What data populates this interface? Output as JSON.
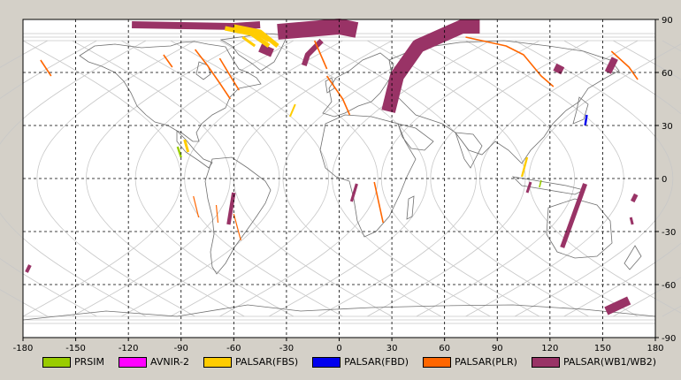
{
  "chart_data": {
    "type": "map",
    "projection": "equirectangular",
    "xlim": [
      -180,
      180
    ],
    "ylim": [
      -90,
      90
    ],
    "x_ticks": [
      -180,
      -150,
      -120,
      -90,
      -60,
      -30,
      0,
      30,
      60,
      90,
      120,
      150,
      180
    ],
    "y_ticks": [
      90,
      60,
      30,
      0,
      -30,
      -60,
      -90
    ],
    "x_tick_labels": [
      "-180",
      "-150",
      "-120",
      "-90",
      "-60",
      "-30",
      "0",
      "30",
      "60",
      "90",
      "120",
      "150",
      "180"
    ],
    "y_tick_labels": [
      "90",
      "60",
      "30",
      "0",
      "-30",
      "-60",
      "-90"
    ],
    "grid": true,
    "legend_position": "bottom",
    "legend": [
      {
        "key": "prism",
        "label": "PRSIM",
        "color": "#99cc00"
      },
      {
        "key": "avnir",
        "label": "AVNIR-2",
        "color": "#ff00ff"
      },
      {
        "key": "fbs",
        "label": "PALSAR(FBS)",
        "color": "#ffcc00"
      },
      {
        "key": "fbd",
        "label": "PALSAR(FBD)",
        "color": "#0000ee"
      },
      {
        "key": "plr",
        "label": "PALSAR(PLR)",
        "color": "#ff6600"
      },
      {
        "key": "wb",
        "label": "PALSAR(WB1/WB2)",
        "color": "#993366"
      }
    ],
    "swaths": {
      "wb": [
        {
          "path": [
            [
              -118,
              87
            ],
            [
              -60,
              86
            ],
            [
              -45,
              87
            ]
          ],
          "width": 4
        },
        {
          "path": [
            [
              -45,
              74
            ],
            [
              -38,
              71
            ]
          ],
          "width": 5
        },
        {
          "path": [
            [
              -35,
              83
            ],
            [
              0,
              86
            ],
            [
              10,
              84
            ]
          ],
          "width": 9
        },
        {
          "path": [
            [
              -10,
              78
            ],
            [
              -18,
              70
            ],
            [
              -20,
              64
            ]
          ],
          "width": 3
        },
        {
          "path": [
            [
              28,
              38
            ],
            [
              33,
              58
            ],
            [
              45,
              75
            ],
            [
              70,
              86
            ],
            [
              80,
              86
            ]
          ],
          "width": 8
        },
        {
          "path": [
            [
              -60,
              -8
            ],
            [
              -63,
              -26
            ]
          ],
          "width": 2.2
        },
        {
          "path": [
            [
              10,
              -3
            ],
            [
              7,
              -13
            ]
          ],
          "width": 1.6
        },
        {
          "path": [
            [
              140,
              -3
            ],
            [
              127,
              -39
            ]
          ],
          "width": 2.6
        },
        {
          "path": [
            [
              126,
              64
            ],
            [
              124,
              60
            ]
          ],
          "width": 5
        },
        {
          "path": [
            [
              157,
              68
            ],
            [
              153,
              60
            ]
          ],
          "width": 4
        },
        {
          "path": [
            [
              169,
              -9
            ],
            [
              167,
              -13
            ]
          ],
          "width": 2.5
        },
        {
          "path": [
            [
              165,
              -69
            ],
            [
              152,
              -75
            ]
          ],
          "width": 5
        },
        {
          "path": [
            [
              -176,
              -49
            ],
            [
              -178,
              -53
            ]
          ],
          "width": 2
        },
        {
          "path": [
            [
              166,
              -22
            ],
            [
              167,
              -26
            ]
          ],
          "width": 1.5
        },
        {
          "path": [
            [
              109,
              -2
            ],
            [
              107,
              -8
            ]
          ],
          "width": 1.5
        }
      ],
      "plr": [
        {
          "path": [
            [
              -82,
              73
            ],
            [
              -75,
              64
            ],
            [
              -68,
              54
            ],
            [
              -62,
              45
            ]
          ],
          "width": 0.8
        },
        {
          "path": [
            [
              -68,
              68
            ],
            [
              -62,
              58
            ],
            [
              -57,
              50
            ]
          ],
          "width": 0.8
        },
        {
          "path": [
            [
              -100,
              70
            ],
            [
              -95,
              63
            ]
          ],
          "width": 0.8
        },
        {
          "path": [
            [
              -170,
              67
            ],
            [
              -164,
              58
            ]
          ],
          "width": 0.8
        },
        {
          "path": [
            [
              -14,
              78
            ],
            [
              -7,
              62
            ]
          ],
          "width": 0.8
        },
        {
          "path": [
            [
              -7,
              58
            ],
            [
              2,
              45
            ],
            [
              6,
              36
            ]
          ],
          "width": 0.8
        },
        {
          "path": [
            [
              20,
              -2
            ],
            [
              25,
              -25
            ]
          ],
          "width": 0.8
        },
        {
          "path": [
            [
              72,
              80
            ],
            [
              95,
              75
            ],
            [
              105,
              70
            ],
            [
              115,
              58
            ],
            [
              122,
              52
            ]
          ],
          "width": 0.8
        },
        {
          "path": [
            [
              155,
              72
            ],
            [
              165,
              63
            ],
            [
              170,
              56
            ]
          ],
          "width": 0.8
        },
        {
          "path": [
            [
              -70,
              -15
            ],
            [
              -69,
              -25
            ]
          ],
          "width": 0.6
        },
        {
          "path": [
            [
              -83,
              -10
            ],
            [
              -80,
              -22
            ]
          ],
          "width": 0.6
        },
        {
          "path": [
            [
              -60,
              -20
            ],
            [
              -56,
              -35
            ]
          ],
          "width": 0.6
        }
      ],
      "fbs": [
        {
          "path": [
            [
              -60,
              86
            ],
            [
              -45,
              83
            ],
            [
              -35,
              75
            ]
          ],
          "width": 2.5
        },
        {
          "path": [
            [
              -65,
              85
            ],
            [
              -50,
              82
            ],
            [
              -40,
              75
            ]
          ],
          "width": 2.5
        },
        {
          "path": [
            [
              -48,
              83
            ],
            [
              -40,
              78
            ]
          ],
          "width": 2
        },
        {
          "path": [
            [
              -88,
              22
            ],
            [
              -86,
              15
            ]
          ],
          "width": 1.5
        },
        {
          "path": [
            [
              -25,
              42
            ],
            [
              -28,
              35
            ]
          ],
          "width": 1
        },
        {
          "path": [
            [
              107,
              12
            ],
            [
              104,
              1
            ]
          ],
          "width": 1.2
        },
        {
          "path": [
            [
              -55,
              80
            ],
            [
              -48,
              75
            ]
          ],
          "width": 1.5
        }
      ],
      "fbd": [
        {
          "path": [
            [
              141,
              36
            ],
            [
              140,
              30
            ]
          ],
          "width": 1.2
        }
      ],
      "prism": [
        {
          "path": [
            [
              -92,
              18
            ],
            [
              -90,
              12
            ]
          ],
          "width": 1.2
        },
        {
          "path": [
            [
              115,
              -1
            ],
            [
              114,
              -5
            ]
          ],
          "width": 0.8
        }
      ],
      "avnir": []
    }
  }
}
